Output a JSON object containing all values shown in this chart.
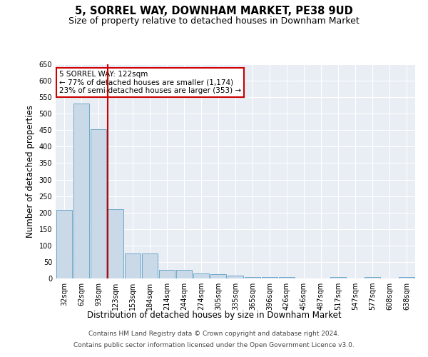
{
  "title": "5, SORREL WAY, DOWNHAM MARKET, PE38 9UD",
  "subtitle": "Size of property relative to detached houses in Downham Market",
  "xlabel": "Distribution of detached houses by size in Downham Market",
  "ylabel": "Number of detached properties",
  "categories": [
    "32sqm",
    "62sqm",
    "93sqm",
    "123sqm",
    "153sqm",
    "184sqm",
    "214sqm",
    "244sqm",
    "274sqm",
    "305sqm",
    "335sqm",
    "365sqm",
    "396sqm",
    "426sqm",
    "456sqm",
    "487sqm",
    "517sqm",
    "547sqm",
    "577sqm",
    "608sqm",
    "638sqm"
  ],
  "values": [
    207,
    530,
    452,
    211,
    76,
    76,
    27,
    27,
    15,
    13,
    8,
    4,
    4,
    4,
    0,
    0,
    5,
    0,
    5,
    0,
    4
  ],
  "bar_color": "#c9d9e8",
  "bar_edge_color": "#6fa8c9",
  "vline_x_index": 3,
  "vline_color": "#cc0000",
  "annotation_text": "5 SORREL WAY: 122sqm\n← 77% of detached houses are smaller (1,174)\n23% of semi-detached houses are larger (353) →",
  "annotation_box_color": "#ffffff",
  "annotation_box_edge": "#cc0000",
  "ylim": [
    0,
    650
  ],
  "yticks": [
    0,
    50,
    100,
    150,
    200,
    250,
    300,
    350,
    400,
    450,
    500,
    550,
    600,
    650
  ],
  "background_color": "#e8eef4",
  "footer_line1": "Contains HM Land Registry data © Crown copyright and database right 2024.",
  "footer_line2": "Contains public sector information licensed under the Open Government Licence v3.0.",
  "title_fontsize": 10.5,
  "subtitle_fontsize": 9,
  "xlabel_fontsize": 8.5,
  "ylabel_fontsize": 8.5,
  "tick_fontsize": 7,
  "footer_fontsize": 6.5,
  "annot_fontsize": 7.5
}
